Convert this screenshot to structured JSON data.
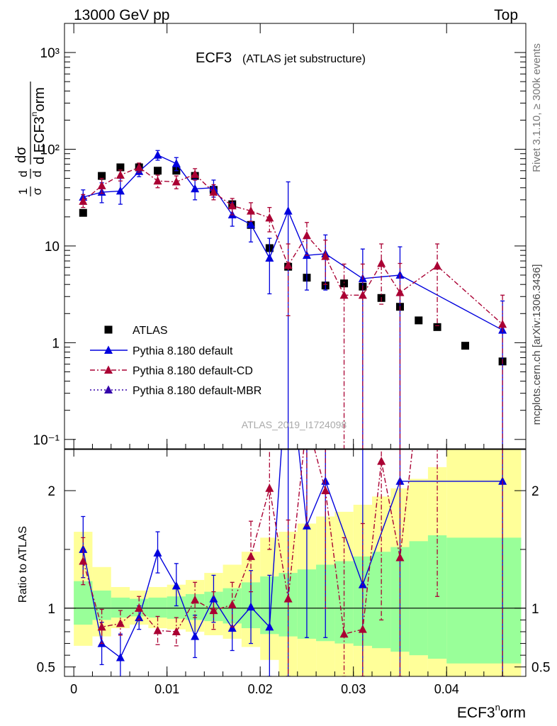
{
  "header": {
    "left": "13000 GeV pp",
    "right": "Top"
  },
  "side": {
    "rivet": "Rivet 3.1.10, ≥ 300k events",
    "mcplots": "mcplots.cern.ch [arXiv:1306.3436]"
  },
  "chart_data": {
    "type": "scatter",
    "title": "ECF3",
    "subtitle": "(ATLAS jet substructure)",
    "analysis_id": "ATLAS_2019_I1724098",
    "xlabel": "ECF3^norm",
    "ylabel": "1/σ dσ/d ECF3^norm",
    "ratio_ylabel": "Ratio to ATLAS",
    "xlim": [
      -0.001,
      0.0485
    ],
    "ylim": [
      0.08,
      2000
    ],
    "ratio_ylim": [
      0.42,
      2.35
    ],
    "x_ticks": [
      {
        "v": 0,
        "label": "0"
      },
      {
        "v": 0.01,
        "label": "0.01"
      },
      {
        "v": 0.02,
        "label": "0.02"
      },
      {
        "v": 0.03,
        "label": "0.03"
      },
      {
        "v": 0.04,
        "label": "0.04"
      }
    ],
    "y_ticks": [
      {
        "v": 0.1,
        "label": "10⁻¹"
      },
      {
        "v": 1,
        "label": "1"
      },
      {
        "v": 10,
        "label": "10"
      },
      {
        "v": 100,
        "label": "10²"
      },
      {
        "v": 1000,
        "label": "10³"
      }
    ],
    "ratio_ticks": [
      {
        "v": 0.5,
        "label": "0.5"
      },
      {
        "v": 1,
        "label": "1"
      },
      {
        "v": 2,
        "label": "2"
      }
    ],
    "legend": [
      "ATLAS",
      "Pythia 8.180 default",
      "Pythia 8.180 default-CD",
      "Pythia 8.180 default-MBR"
    ],
    "bands": [
      {
        "x0": 0.0,
        "x1": 0.002,
        "in": [
          0.86,
          1.23
        ],
        "out": [
          0.68,
          1.65
        ]
      },
      {
        "x0": 0.002,
        "x1": 0.004,
        "in": [
          0.9,
          1.15
        ],
        "out": [
          0.76,
          1.35
        ]
      },
      {
        "x0": 0.004,
        "x1": 0.006,
        "in": [
          0.92,
          1.09
        ],
        "out": [
          0.83,
          1.18
        ]
      },
      {
        "x0": 0.006,
        "x1": 0.008,
        "in": [
          0.93,
          1.08
        ],
        "out": [
          0.86,
          1.15
        ]
      },
      {
        "x0": 0.008,
        "x1": 0.01,
        "in": [
          0.92,
          1.09
        ],
        "out": [
          0.83,
          1.18
        ]
      },
      {
        "x0": 0.01,
        "x1": 0.012,
        "in": [
          0.91,
          1.1
        ],
        "out": [
          0.82,
          1.2
        ]
      },
      {
        "x0": 0.012,
        "x1": 0.014,
        "in": [
          0.9,
          1.12
        ],
        "out": [
          0.8,
          1.24
        ]
      },
      {
        "x0": 0.014,
        "x1": 0.016,
        "in": [
          0.89,
          1.14
        ],
        "out": [
          0.77,
          1.3
        ]
      },
      {
        "x0": 0.016,
        "x1": 0.018,
        "in": [
          0.87,
          1.17
        ],
        "out": [
          0.74,
          1.37
        ]
      },
      {
        "x0": 0.018,
        "x1": 0.02,
        "in": [
          0.83,
          1.22
        ],
        "out": [
          0.67,
          1.48
        ]
      },
      {
        "x0": 0.02,
        "x1": 0.022,
        "in": [
          0.78,
          1.27
        ],
        "out": [
          0.56,
          1.6
        ]
      },
      {
        "x0": 0.022,
        "x1": 0.024,
        "in": [
          0.76,
          1.3
        ],
        "out": [
          0.42,
          1.65
        ]
      },
      {
        "x0": 0.024,
        "x1": 0.026,
        "in": [
          0.74,
          1.33
        ],
        "out": [
          0.42,
          1.72
        ]
      },
      {
        "x0": 0.026,
        "x1": 0.028,
        "in": [
          0.72,
          1.37
        ],
        "out": [
          0.42,
          1.78
        ]
      },
      {
        "x0": 0.028,
        "x1": 0.03,
        "in": [
          0.7,
          1.4
        ],
        "out": [
          0.42,
          1.82
        ]
      },
      {
        "x0": 0.03,
        "x1": 0.032,
        "in": [
          0.68,
          1.44
        ],
        "out": [
          0.42,
          1.88
        ]
      },
      {
        "x0": 0.032,
        "x1": 0.034,
        "in": [
          0.66,
          1.48
        ],
        "out": [
          0.42,
          1.95
        ]
      },
      {
        "x0": 0.034,
        "x1": 0.036,
        "in": [
          0.63,
          1.52
        ],
        "out": [
          0.42,
          2.02
        ]
      },
      {
        "x0": 0.036,
        "x1": 0.038,
        "in": [
          0.6,
          1.57
        ],
        "out": [
          0.42,
          2.1
        ]
      },
      {
        "x0": 0.038,
        "x1": 0.04,
        "in": [
          0.57,
          1.62
        ],
        "out": [
          0.42,
          2.2
        ]
      },
      {
        "x0": 0.04,
        "x1": 0.048,
        "in": [
          0.53,
          1.6
        ],
        "out": [
          0.42,
          2.35
        ]
      }
    ],
    "series": [
      {
        "name": "ATLAS",
        "marker": "square",
        "color": "#000000",
        "points": [
          {
            "x": 0.001,
            "y": 22
          },
          {
            "x": 0.003,
            "y": 53
          },
          {
            "x": 0.005,
            "y": 65
          },
          {
            "x": 0.007,
            "y": 65
          },
          {
            "x": 0.009,
            "y": 60
          },
          {
            "x": 0.011,
            "y": 60
          },
          {
            "x": 0.013,
            "y": 53
          },
          {
            "x": 0.015,
            "y": 38
          },
          {
            "x": 0.017,
            "y": 27
          },
          {
            "x": 0.019,
            "y": 16.5
          },
          {
            "x": 0.021,
            "y": 9.5
          },
          {
            "x": 0.023,
            "y": 6.1
          },
          {
            "x": 0.025,
            "y": 4.7
          },
          {
            "x": 0.027,
            "y": 3.9
          },
          {
            "x": 0.029,
            "y": 4.1
          },
          {
            "x": 0.031,
            "y": 3.8
          },
          {
            "x": 0.033,
            "y": 2.9
          },
          {
            "x": 0.035,
            "y": 2.35
          },
          {
            "x": 0.037,
            "y": 1.7
          },
          {
            "x": 0.039,
            "y": 1.45
          },
          {
            "x": 0.042,
            "y": 0.93
          },
          {
            "x": 0.046,
            "y": 0.64
          }
        ]
      },
      {
        "name": "Pythia 8.180 default",
        "marker": "triangle",
        "color": "#0000dd",
        "line": "solid",
        "points": [
          {
            "x": 0.001,
            "y": 32,
            "lo": 27,
            "hi": 38
          },
          {
            "x": 0.003,
            "y": 36,
            "lo": 28,
            "hi": 45
          },
          {
            "x": 0.005,
            "y": 37,
            "lo": 27,
            "hi": 50
          },
          {
            "x": 0.007,
            "y": 59,
            "lo": 52,
            "hi": 66
          },
          {
            "x": 0.009,
            "y": 87,
            "lo": 77,
            "hi": 97
          },
          {
            "x": 0.011,
            "y": 71,
            "lo": 60,
            "hi": 82
          },
          {
            "x": 0.013,
            "y": 39,
            "lo": 30,
            "hi": 49
          },
          {
            "x": 0.015,
            "y": 40,
            "lo": 32,
            "hi": 48
          },
          {
            "x": 0.017,
            "y": 21,
            "lo": 16,
            "hi": 28
          },
          {
            "x": 0.019,
            "y": 16.7,
            "lo": 11,
            "hi": 23
          },
          {
            "x": 0.021,
            "y": 7.5,
            "lo": 3.2,
            "hi": 12
          },
          {
            "x": 0.023,
            "y": 23,
            "lo": 0.05,
            "hi": 46
          },
          {
            "x": 0.025,
            "y": 8,
            "lo": 3.5,
            "hi": 12.5
          },
          {
            "x": 0.027,
            "y": 8.3,
            "lo": 3.5,
            "hi": 13
          },
          {
            "x": 0.031,
            "y": 4.6,
            "lo": 0.05,
            "hi": 9.3
          },
          {
            "x": 0.035,
            "y": 5,
            "lo": 0.05,
            "hi": 9.8
          },
          {
            "x": 0.046,
            "y": 1.35,
            "lo": 0.05,
            "hi": 2.7
          }
        ],
        "ratio": [
          {
            "x": 0.001,
            "y": 1.5,
            "lo": 1.26,
            "hi": 1.78
          },
          {
            "x": 0.003,
            "y": 0.7,
            "lo": 0.52,
            "hi": 0.88
          },
          {
            "x": 0.005,
            "y": 0.58,
            "lo": 0.39,
            "hi": 0.78
          },
          {
            "x": 0.007,
            "y": 0.92,
            "lo": 0.82,
            "hi": 1.02
          },
          {
            "x": 0.009,
            "y": 1.47,
            "lo": 1.3,
            "hi": 1.65
          },
          {
            "x": 0.011,
            "y": 1.19,
            "lo": 1.02,
            "hi": 1.38
          },
          {
            "x": 0.013,
            "y": 0.76,
            "lo": 0.58,
            "hi": 0.94
          },
          {
            "x": 0.015,
            "y": 1.08,
            "lo": 0.88,
            "hi": 1.28
          },
          {
            "x": 0.017,
            "y": 0.83,
            "lo": 0.64,
            "hi": 1.02
          },
          {
            "x": 0.019,
            "y": 1.01,
            "lo": 0.7,
            "hi": 1.32
          },
          {
            "x": 0.021,
            "y": 0.84,
            "lo": 0.42,
            "hi": 1.28
          },
          {
            "x": 0.023,
            "y": 3.2,
            "lo": 0.42,
            "hi": 3.2
          },
          {
            "x": 0.025,
            "y": 1.7,
            "lo": 0.75,
            "hi": 2.5
          },
          {
            "x": 0.027,
            "y": 2.08,
            "lo": 0.75,
            "hi": 3.2
          },
          {
            "x": 0.031,
            "y": 1.2,
            "lo": 0.42,
            "hi": 2.4
          },
          {
            "x": 0.035,
            "y": 2.08,
            "lo": 0.42,
            "hi": 3.0
          },
          {
            "x": 0.046,
            "y": 2.08,
            "lo": 0.42,
            "hi": 3.0
          }
        ]
      },
      {
        "name": "Pythia 8.180 default-CD",
        "marker": "triangle",
        "color": "#aa0033",
        "line": "dashdot",
        "points": [
          {
            "x": 0.001,
            "y": 29,
            "lo": 25,
            "hi": 34
          },
          {
            "x": 0.003,
            "y": 42,
            "lo": 35,
            "hi": 50
          },
          {
            "x": 0.005,
            "y": 54,
            "lo": 47,
            "hi": 61
          },
          {
            "x": 0.007,
            "y": 65,
            "lo": 58,
            "hi": 72
          },
          {
            "x": 0.009,
            "y": 47,
            "lo": 40,
            "hi": 54
          },
          {
            "x": 0.011,
            "y": 46,
            "lo": 39,
            "hi": 53
          },
          {
            "x": 0.013,
            "y": 55,
            "lo": 48,
            "hi": 63
          },
          {
            "x": 0.015,
            "y": 36,
            "lo": 30,
            "hi": 43
          },
          {
            "x": 0.017,
            "y": 26,
            "lo": 21,
            "hi": 31
          },
          {
            "x": 0.019,
            "y": 23,
            "lo": 18,
            "hi": 28
          },
          {
            "x": 0.021,
            "y": 19.5,
            "lo": 14,
            "hi": 25
          },
          {
            "x": 0.023,
            "y": 6.3,
            "lo": 1.9,
            "hi": 10.5
          },
          {
            "x": 0.025,
            "y": 12.8,
            "lo": 8,
            "hi": 17.5
          },
          {
            "x": 0.027,
            "y": 7.8,
            "lo": 4,
            "hi": 11.5
          },
          {
            "x": 0.029,
            "y": 3.1,
            "lo": 0.05,
            "hi": 6.5
          },
          {
            "x": 0.031,
            "y": 3.1,
            "lo": 0.05,
            "hi": 6.5
          },
          {
            "x": 0.033,
            "y": 6.6,
            "lo": 2.5,
            "hi": 10.5
          },
          {
            "x": 0.035,
            "y": 3.3,
            "lo": 0.05,
            "hi": 6.6
          },
          {
            "x": 0.039,
            "y": 6.2,
            "lo": 1.5,
            "hi": 10.5
          },
          {
            "x": 0.046,
            "y": 1.55,
            "lo": 0.05,
            "hi": 3.1
          }
        ],
        "ratio": [
          {
            "x": 0.001,
            "y": 1.4,
            "lo": 1.2,
            "hi": 1.6
          },
          {
            "x": 0.003,
            "y": 0.84,
            "lo": 0.7,
            "hi": 0.99
          },
          {
            "x": 0.005,
            "y": 0.87,
            "lo": 0.77,
            "hi": 0.98
          },
          {
            "x": 0.007,
            "y": 1.0,
            "lo": 0.9,
            "hi": 1.1
          },
          {
            "x": 0.009,
            "y": 0.81,
            "lo": 0.69,
            "hi": 0.93
          },
          {
            "x": 0.011,
            "y": 0.8,
            "lo": 0.68,
            "hi": 0.92
          },
          {
            "x": 0.013,
            "y": 1.07,
            "lo": 0.92,
            "hi": 1.22
          },
          {
            "x": 0.015,
            "y": 0.98,
            "lo": 0.82,
            "hi": 1.14
          },
          {
            "x": 0.017,
            "y": 1.03,
            "lo": 0.84,
            "hi": 1.22
          },
          {
            "x": 0.019,
            "y": 1.44,
            "lo": 1.14,
            "hi": 1.74
          },
          {
            "x": 0.021,
            "y": 2.02,
            "lo": 1.5,
            "hi": 2.6
          },
          {
            "x": 0.023,
            "y": 1.08,
            "lo": 0.42,
            "hi": 1.75
          },
          {
            "x": 0.025,
            "y": 2.6,
            "lo": 1.7,
            "hi": 3.5
          },
          {
            "x": 0.027,
            "y": 2.0,
            "lo": 1.0,
            "hi": 3.0
          },
          {
            "x": 0.029,
            "y": 0.78,
            "lo": 0.42,
            "hi": 1.6
          },
          {
            "x": 0.031,
            "y": 0.82,
            "lo": 0.42,
            "hi": 1.72
          },
          {
            "x": 0.033,
            "y": 2.25,
            "lo": 0.9,
            "hi": 3.6
          },
          {
            "x": 0.035,
            "y": 1.43,
            "lo": 0.42,
            "hi": 2.8
          },
          {
            "x": 0.039,
            "y": 4.2,
            "lo": 1.1,
            "hi": 7.2
          },
          {
            "x": 0.046,
            "y": 2.4,
            "lo": 0.42,
            "hi": 4.8
          }
        ]
      },
      {
        "name": "Pythia 8.180 default-MBR",
        "marker": "triangle",
        "color": "#3300aa",
        "line": "dotted",
        "points": [],
        "ratio": []
      }
    ]
  }
}
